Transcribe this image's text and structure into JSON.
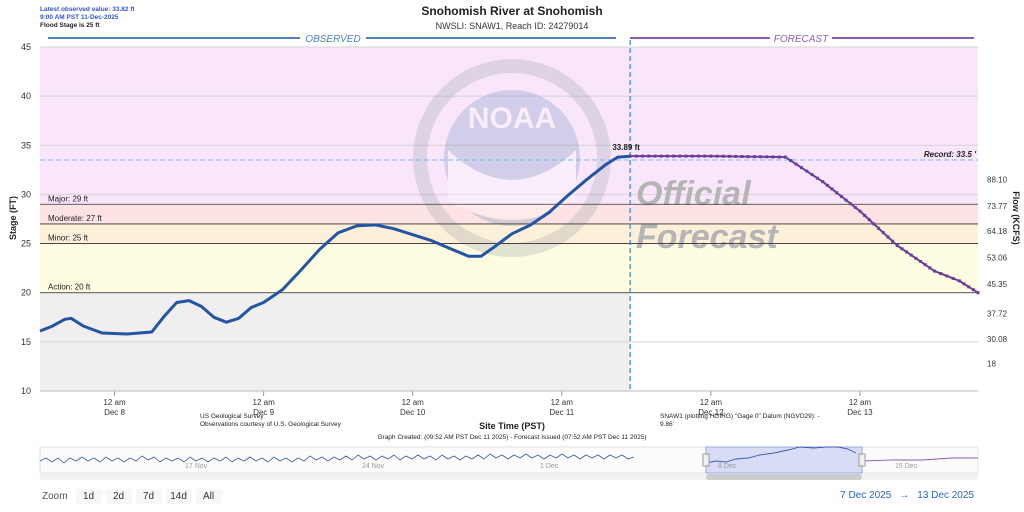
{
  "info": {
    "latest_observed": "Latest observed value: 33.82 ft",
    "latest_time": "9:00 AM PST 11-Dec-2025",
    "flood_stage": "Flood Stage is 25 ft"
  },
  "chart_data": {
    "type": "line",
    "title": "Snohomish River at Snohomish",
    "subtitle": "NWSLI: SNAW1, Reach ID: 24279014",
    "xlabel": "Site Time (PST)",
    "ylabel": "Stage (FT)",
    "y2label": "Flow (KCFS)",
    "ylim": [
      10,
      45
    ],
    "xlim": [
      "2025-12-07 12:00",
      "2025-12-13 19:00"
    ],
    "section_labels": {
      "observed": "OBSERVED",
      "forecast": "FORECAST"
    },
    "x_ticks": [
      {
        "time": "2025-12-08 00:00",
        "line1": "12 am",
        "line2": "Dec 8"
      },
      {
        "time": "2025-12-09 00:00",
        "line1": "12 am",
        "line2": "Dec 9"
      },
      {
        "time": "2025-12-10 00:00",
        "line1": "12 am",
        "line2": "Dec 10"
      },
      {
        "time": "2025-12-11 00:00",
        "line1": "12 am",
        "line2": "Dec 11"
      },
      {
        "time": "2025-12-12 00:00",
        "line1": "12 am",
        "line2": "Dec 12"
      },
      {
        "time": "2025-12-13 00:00",
        "line1": "12 am",
        "line2": "Dec 13"
      }
    ],
    "y_ticks": [
      10,
      15,
      20,
      25,
      30,
      35,
      40,
      45
    ],
    "flow_ticks": [
      {
        "stage": 12.8,
        "label": "18"
      },
      {
        "stage": 15.3,
        "label": "30.08"
      },
      {
        "stage": 17.9,
        "label": "37.72"
      },
      {
        "stage": 20.9,
        "label": "45.35"
      },
      {
        "stage": 23.6,
        "label": "53.06"
      },
      {
        "stage": 26.3,
        "label": "64.18"
      },
      {
        "stage": 28.8,
        "label": "73.77"
      },
      {
        "stage": 31.5,
        "label": "88.10"
      }
    ],
    "bands": [
      {
        "name": "Major flood",
        "from": 29,
        "to": 45,
        "color": "#f9e6fb"
      },
      {
        "name": "Moderate flood",
        "from": 27,
        "to": 29,
        "color": "#fde3e3"
      },
      {
        "name": "Minor flood",
        "from": 25,
        "to": 27,
        "color": "#fdf0d8"
      },
      {
        "name": "Action",
        "from": 20,
        "to": 25,
        "color": "#fdfbe0"
      }
    ],
    "thresholds": [
      {
        "label": "Major: 29 ft",
        "value": 29
      },
      {
        "label": "Moderate: 27 ft",
        "value": 27
      },
      {
        "label": "Minor: 25 ft",
        "value": 25
      },
      {
        "label": "Action: 20 ft",
        "value": 20
      }
    ],
    "record": {
      "label": "Record: 33.5 '",
      "value": 33.5
    },
    "observed_end": "2025-12-11 11:00",
    "peak_label": "33.89 ft",
    "series": [
      {
        "name": "Observed",
        "color": "#2255a4",
        "points": [
          [
            "2025-12-07 12:00",
            16.1
          ],
          [
            "2025-12-07 14:00",
            16.6
          ],
          [
            "2025-12-07 16:00",
            17.3
          ],
          [
            "2025-12-07 17:00",
            17.4
          ],
          [
            "2025-12-07 19:00",
            16.6
          ],
          [
            "2025-12-07 22:00",
            15.9
          ],
          [
            "2025-12-08 02:00",
            15.8
          ],
          [
            "2025-12-08 06:00",
            16.0
          ],
          [
            "2025-12-08 08:00",
            17.6
          ],
          [
            "2025-12-08 10:00",
            19.0
          ],
          [
            "2025-12-08 12:00",
            19.2
          ],
          [
            "2025-12-08 14:00",
            18.6
          ],
          [
            "2025-12-08 16:00",
            17.5
          ],
          [
            "2025-12-08 18:00",
            17.0
          ],
          [
            "2025-12-08 20:00",
            17.4
          ],
          [
            "2025-12-08 22:00",
            18.5
          ],
          [
            "2025-12-09 00:00",
            19.0
          ],
          [
            "2025-12-09 03:00",
            20.3
          ],
          [
            "2025-12-09 06:00",
            22.3
          ],
          [
            "2025-12-09 09:00",
            24.4
          ],
          [
            "2025-12-09 12:00",
            26.1
          ],
          [
            "2025-12-09 15:00",
            26.8
          ],
          [
            "2025-12-09 18:00",
            26.9
          ],
          [
            "2025-12-09 21:00",
            26.5
          ],
          [
            "2025-12-10 00:00",
            25.9
          ],
          [
            "2025-12-10 03:00",
            25.3
          ],
          [
            "2025-12-10 06:00",
            24.5
          ],
          [
            "2025-12-10 09:00",
            23.7
          ],
          [
            "2025-12-10 11:00",
            23.7
          ],
          [
            "2025-12-10 13:00",
            24.6
          ],
          [
            "2025-12-10 16:00",
            26.0
          ],
          [
            "2025-12-10 19:00",
            26.9
          ],
          [
            "2025-12-10 22:00",
            28.2
          ],
          [
            "2025-12-11 01:00",
            29.9
          ],
          [
            "2025-12-11 04:00",
            31.5
          ],
          [
            "2025-12-11 07:00",
            33.0
          ],
          [
            "2025-12-11 09:00",
            33.8
          ],
          [
            "2025-12-11 11:00",
            33.89
          ]
        ]
      },
      {
        "name": "Forecast",
        "color": "#6a3d9a",
        "points": [
          [
            "2025-12-11 11:00",
            33.9
          ],
          [
            "2025-12-11 18:00",
            33.9
          ],
          [
            "2025-12-12 00:00",
            33.9
          ],
          [
            "2025-12-12 06:00",
            33.85
          ],
          [
            "2025-12-12 12:00",
            33.8
          ],
          [
            "2025-12-12 18:00",
            31.3
          ],
          [
            "2025-12-13 00:00",
            28.3
          ],
          [
            "2025-12-13 06:00",
            24.8
          ],
          [
            "2025-12-13 12:00",
            22.2
          ],
          [
            "2025-12-13 16:00",
            21.2
          ],
          [
            "2025-12-13 19:00",
            20.0
          ]
        ]
      }
    ]
  },
  "watermark": {
    "agency": "NOAA",
    "official_line1": "Official",
    "official_line2": "Forecast"
  },
  "footer": {
    "usgs_line1": "US Geological Survey",
    "usgs_line2": "Observations courtesy of U.S. Geological Survey",
    "datum": "SNAW1 (plotting HGIRG) \"Gage 0\" Datum (NGVD29): -",
    "datum_value": "9.86'",
    "graph_created": "Graph Created: (09:52 AM PST Dec 11 2025) - Forecast Issued (07:52 AM PST Dec 11 2025)"
  },
  "navigator": {
    "labels": [
      {
        "text": "17 Nov"
      },
      {
        "text": "24 Nov"
      },
      {
        "text": "1 Dec"
      },
      {
        "text": "8 Dec"
      },
      {
        "text": "15 Dec"
      }
    ]
  },
  "zoom": {
    "label": "Zoom",
    "buttons": [
      "1d",
      "2d",
      "7d",
      "14d",
      "All"
    ]
  },
  "range": {
    "from": "7 Dec 2025",
    "arrow": "→",
    "to": "13 Dec 2025"
  }
}
